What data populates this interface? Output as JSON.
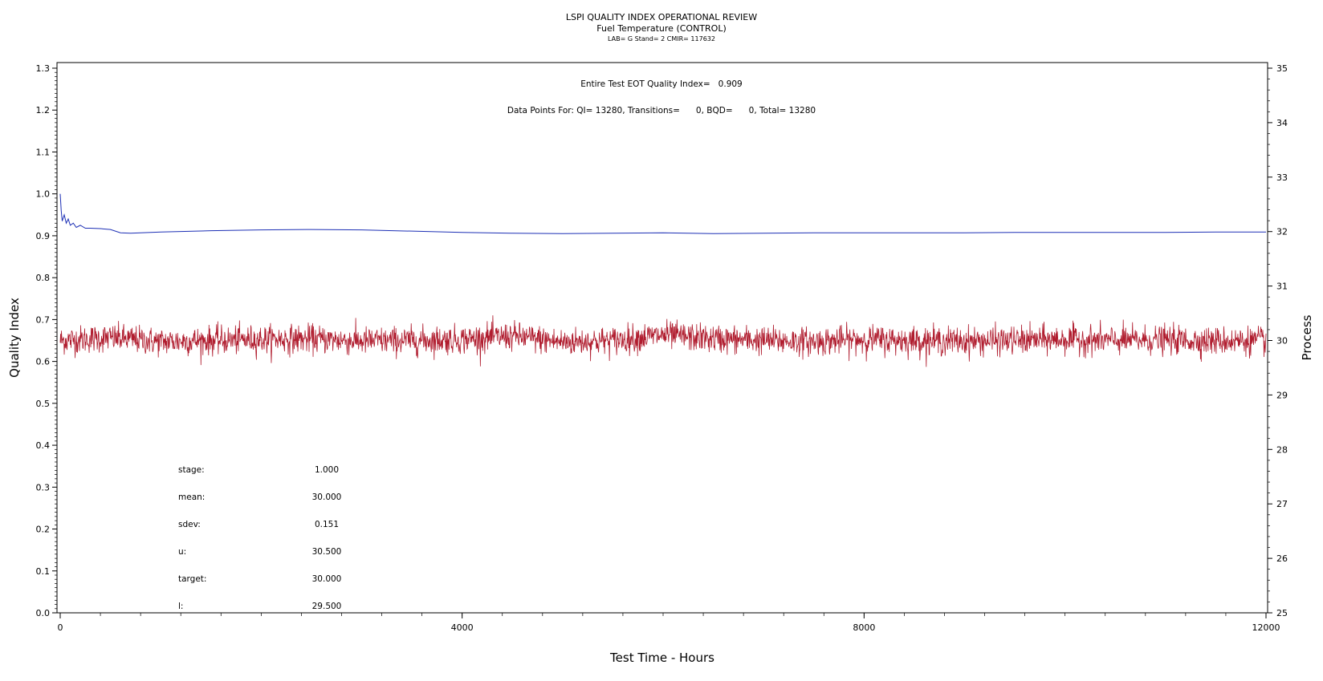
{
  "header": {
    "title": "LSPI QUALITY INDEX OPERATIONAL REVIEW",
    "subtitle": "Fuel Temperature (CONTROL)",
    "subtitle2": "LAB= G Stand= 2 CMIR= 117632"
  },
  "annotations": {
    "qi_line": "Entire Test EOT Quality Index=   0.909",
    "points_line": "Data Points For: QI= 13280, Transitions=      0, BQD=      0, Total= 13280"
  },
  "stats": [
    {
      "label": "stage:",
      "value": "1.000"
    },
    {
      "label": "mean:",
      "value": "30.000"
    },
    {
      "label": "sdev:",
      "value": "0.151"
    },
    {
      "label": "u:",
      "value": "30.500"
    },
    {
      "label": "target:",
      "value": "30.000"
    },
    {
      "label": "l:",
      "value": "29.500"
    }
  ],
  "chart_data": {
    "type": "line",
    "xlabel": "Test Time - Hours",
    "ylabel": "Quality Index",
    "y2label": "Process",
    "xlim": [
      0,
      12000
    ],
    "ylim": [
      0,
      1.3
    ],
    "y2lim": [
      25,
      35
    ],
    "x_ticks": [
      "0",
      "4000",
      "8000",
      "12000"
    ],
    "y_ticks": [
      "0.0",
      "0.1",
      "0.2",
      "0.3",
      "0.4",
      "0.5",
      "0.6",
      "0.7",
      "0.8",
      "0.9",
      "1.0",
      "1.1",
      "1.2",
      "1.3"
    ],
    "y2_ticks": [
      "25",
      "26",
      "27",
      "28",
      "29",
      "30",
      "31",
      "32",
      "33",
      "34",
      "35"
    ],
    "colors": {
      "quality_index": "#1c2fb5",
      "process": "#b01c2e"
    },
    "series": [
      {
        "name": "Quality Index",
        "axis": "left",
        "x": [
          0,
          10,
          20,
          40,
          60,
          80,
          100,
          130,
          160,
          200,
          250,
          300,
          400,
          500,
          600,
          700,
          800,
          1000,
          1500,
          2000,
          2500,
          3000,
          3500,
          4000,
          4500,
          5000,
          5500,
          6000,
          6500,
          7000,
          7500,
          8000,
          8500,
          9000,
          9500,
          10000,
          10500,
          11000,
          11500,
          12000
        ],
        "y": [
          1.0,
          0.96,
          0.935,
          0.95,
          0.93,
          0.94,
          0.925,
          0.93,
          0.92,
          0.925,
          0.918,
          0.918,
          0.917,
          0.915,
          0.907,
          0.906,
          0.907,
          0.909,
          0.912,
          0.914,
          0.915,
          0.914,
          0.911,
          0.908,
          0.906,
          0.905,
          0.906,
          0.907,
          0.905,
          0.906,
          0.907,
          0.907,
          0.907,
          0.907,
          0.908,
          0.908,
          0.908,
          0.908,
          0.909,
          0.909
        ]
      },
      {
        "name": "Process",
        "axis": "right",
        "description_values": "noisy fuel temperature around 30.0 with sdev 0.151, range approx 29.3 to 30.7",
        "x": [
          0,
          500,
          1000,
          1500,
          2000,
          2500,
          3000,
          3500,
          4000,
          4500,
          5000,
          5500,
          6000,
          6500,
          7000,
          7500,
          8000,
          8500,
          9000,
          9500,
          10000,
          10500,
          11000,
          11500,
          12000
        ],
        "y": [
          30.0,
          30.05,
          29.98,
          30.0,
          30.02,
          30.03,
          29.99,
          30.0,
          30.02,
          30.08,
          29.97,
          30.0,
          30.1,
          30.03,
          30.0,
          29.98,
          30.02,
          30.0,
          29.99,
          30.0,
          30.02,
          30.0,
          30.01,
          29.99,
          30.0
        ],
        "sdev": 0.151,
        "mean": 30.0
      }
    ]
  }
}
